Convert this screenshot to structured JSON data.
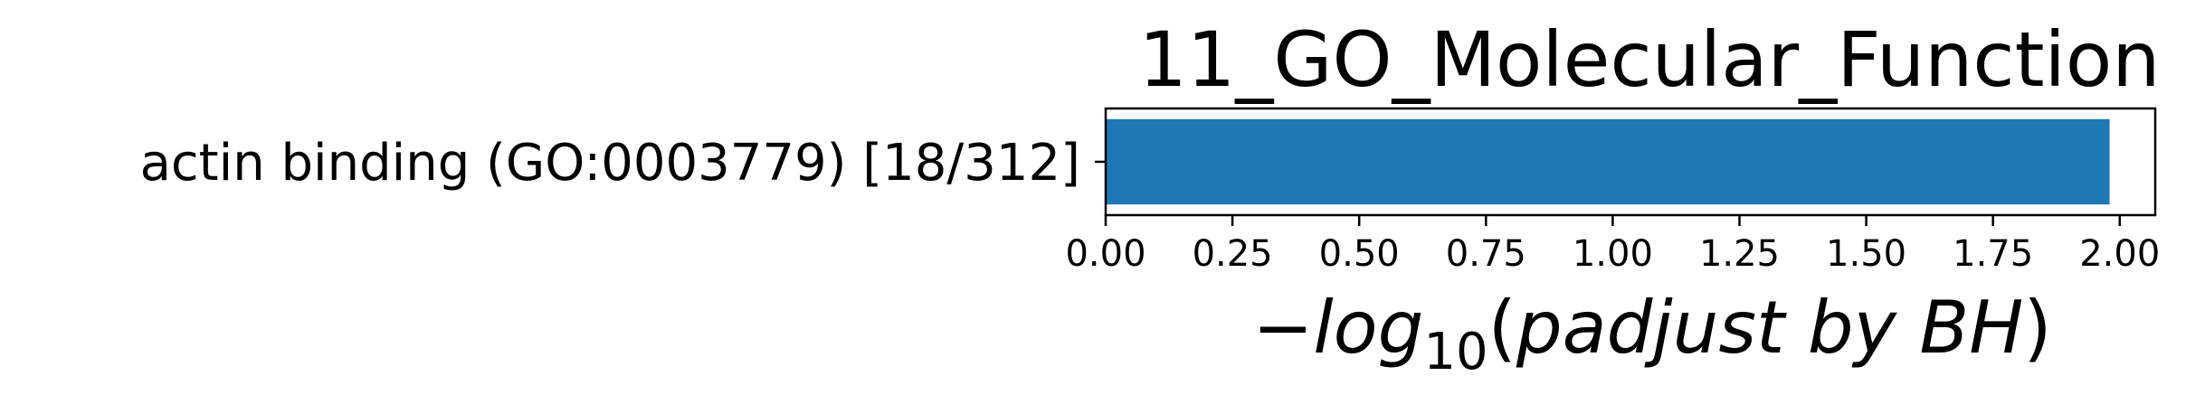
{
  "chart_data": {
    "type": "bar",
    "orientation": "horizontal",
    "title": "11_GO_Molecular_Function",
    "categories": [
      "actin binding (GO:0003779) [18/312]"
    ],
    "values": [
      1.98
    ],
    "xlim": [
      0.0,
      2.07
    ],
    "xticks": [
      "0.00",
      "0.25",
      "0.50",
      "0.75",
      "1.00",
      "1.25",
      "1.50",
      "1.75",
      "2.00"
    ],
    "xlabel": {
      "minus": "−",
      "log": "log",
      "base": "10",
      "open": "(",
      "body": "padjust by BH",
      "close": ")"
    },
    "ylabel": "",
    "grid": false,
    "bar_color": "#1f77b4"
  }
}
